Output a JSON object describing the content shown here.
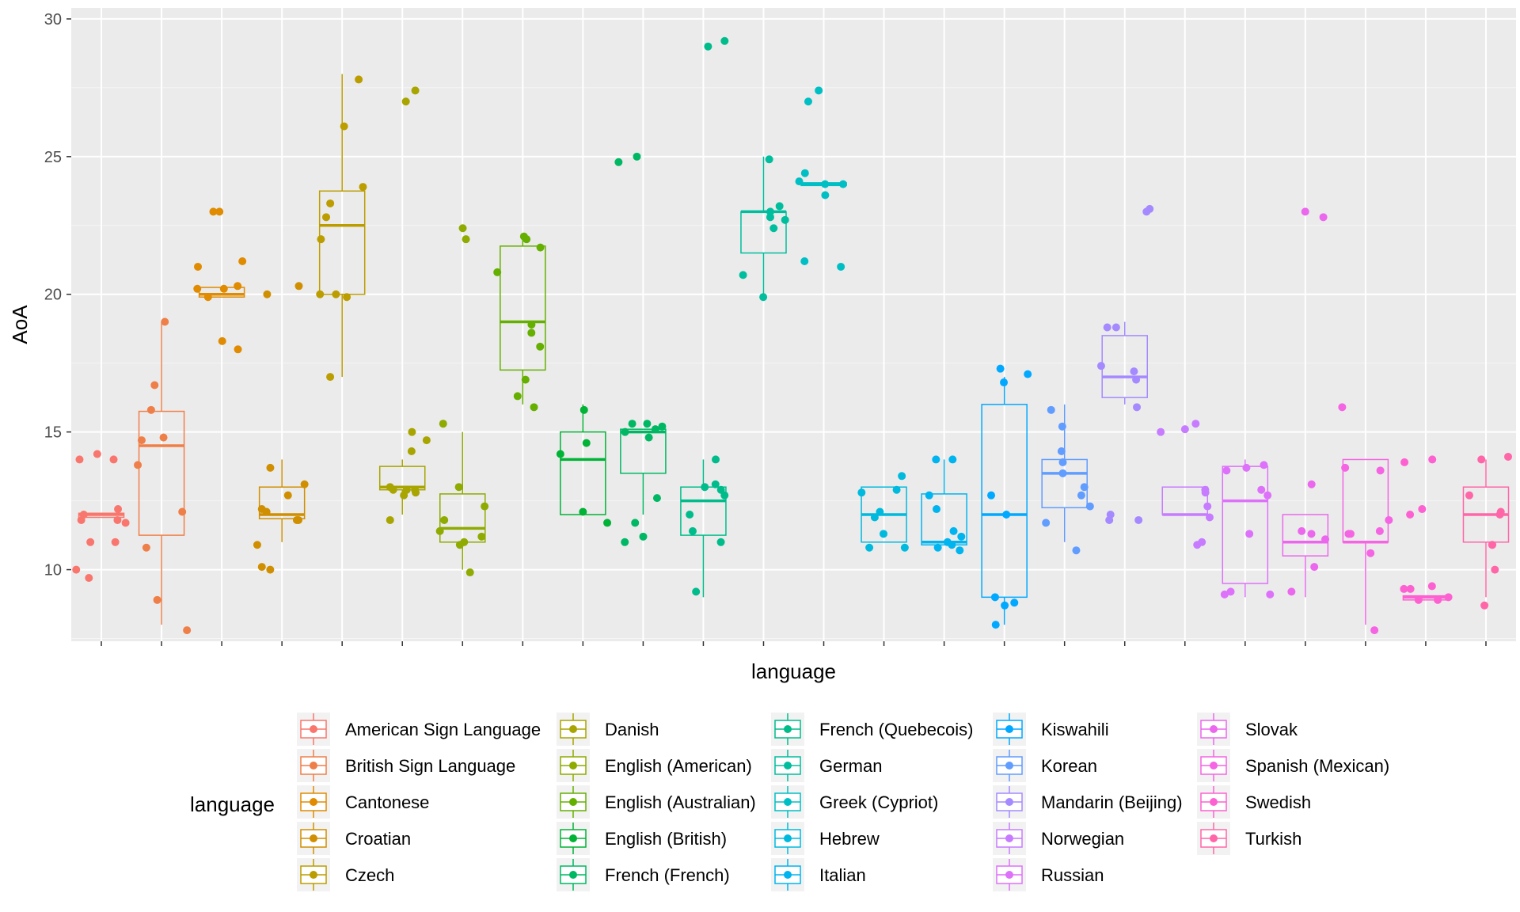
{
  "chart_data": {
    "type": "box",
    "xlabel": "language",
    "ylabel": "AoA",
    "ylim": [
      7.4,
      30.4
    ],
    "yticks": [
      10,
      15,
      20,
      25,
      30
    ],
    "grid": true,
    "legend": {
      "title": "language",
      "placement": "bottom",
      "columns": 5
    },
    "categories": [
      "American Sign Language",
      "British Sign Language",
      "Cantonese",
      "Croatian",
      "Czech",
      "Danish",
      "English (American)",
      "English (Australian)",
      "English (British)",
      "French (French)",
      "French (Quebecois)",
      "German",
      "Greek (Cypriot)",
      "Hebrew",
      "Italian",
      "Kiswahili",
      "Korean",
      "Mandarin (Beijing)",
      "Norwegian",
      "Russian",
      "Slovak",
      "Spanish (Mexican)",
      "Swedish",
      "Turkish"
    ],
    "series": [
      {
        "name": "American Sign Language",
        "color": "#F8766D",
        "box": {
          "q1": 11.9,
          "median": 12,
          "q3": 12.05,
          "whisker_low": 11.9,
          "whisker_high": 12.05
        },
        "points": [
          14,
          14,
          14.2,
          12.2,
          12,
          11.8,
          11.8,
          11.7,
          11,
          11,
          10,
          9.7
        ]
      },
      {
        "name": "British Sign Language",
        "color": "#EF7F48",
        "box": {
          "q1": 11.25,
          "median": 14.5,
          "q3": 15.75,
          "whisker_low": 8,
          "whisker_high": 19
        },
        "points": [
          19,
          16.7,
          15.8,
          14.8,
          14.7,
          13.8,
          12.1,
          10.8,
          8.9,
          7.8
        ]
      },
      {
        "name": "Cantonese",
        "color": "#E08B00",
        "box": {
          "q1": 19.9,
          "median": 20,
          "q3": 20.25,
          "whisker_low": 19.9,
          "whisker_high": 20.25
        },
        "points": [
          23,
          23,
          21.2,
          21,
          20.3,
          20.2,
          20.2,
          19.9,
          18.3,
          18
        ]
      },
      {
        "name": "Croatian",
        "color": "#D08F00",
        "box": {
          "q1": 11.85,
          "median": 12,
          "q3": 13,
          "whisker_low": 11,
          "whisker_high": 14
        },
        "points": [
          13.7,
          13.1,
          12.7,
          12.2,
          12.1,
          11.8,
          11.8,
          10.9,
          10.1,
          10,
          20.3,
          20
        ]
      },
      {
        "name": "Czech",
        "color": "#BC9D00",
        "box": {
          "q1": 20,
          "median": 22.5,
          "q3": 23.75,
          "whisker_low": 17,
          "whisker_high": 28
        },
        "points": [
          27.8,
          26.1,
          23.9,
          23.3,
          22.8,
          22,
          20,
          20,
          19.9,
          17
        ]
      },
      {
        "name": "Danish",
        "color": "#A8A400",
        "box": {
          "q1": 12.9,
          "median": 13,
          "q3": 13.75,
          "whisker_low": 12,
          "whisker_high": 14
        },
        "points": [
          27.4,
          27,
          15,
          14.7,
          14.3,
          13,
          12.9,
          12.9,
          12.9,
          12.8,
          12.7,
          11.8
        ]
      },
      {
        "name": "English (American)",
        "color": "#8FAA00",
        "box": {
          "q1": 11,
          "median": 11.5,
          "q3": 12.75,
          "whisker_low": 10,
          "whisker_high": 15
        },
        "points": [
          22.4,
          22,
          15.3,
          13,
          12.3,
          11.8,
          11.4,
          11.2,
          11,
          10.9,
          9.9
        ]
      },
      {
        "name": "English (Australian)",
        "color": "#65AF00",
        "box": {
          "q1": 17.25,
          "median": 19,
          "q3": 21.75,
          "whisker_low": 16,
          "whisker_high": 22
        },
        "points": [
          22.1,
          22,
          21.7,
          20.8,
          18.9,
          18.6,
          18.1,
          16.9,
          16.3,
          15.9
        ]
      },
      {
        "name": "English (British)",
        "color": "#00B336",
        "box": {
          "q1": 12,
          "median": 14,
          "q3": 15,
          "whisker_low": 12,
          "whisker_high": 16
        },
        "points": [
          15.8,
          14.6,
          14.2,
          12.1,
          11.7
        ]
      },
      {
        "name": "French (French)",
        "color": "#00B863",
        "box": {
          "q1": 13.5,
          "median": 15,
          "q3": 15.1,
          "whisker_low": 12,
          "whisker_high": 15.1
        },
        "points": [
          24.8,
          25,
          15.3,
          15.3,
          15.2,
          15.1,
          15,
          14.8,
          12.6,
          11.7,
          11.2,
          11
        ]
      },
      {
        "name": "French (Quebecois)",
        "color": "#00BC8B",
        "box": {
          "q1": 11.25,
          "median": 12.5,
          "q3": 13,
          "whisker_low": 9,
          "whisker_high": 14
        },
        "points": [
          29,
          29.2,
          14,
          13.1,
          13,
          12.9,
          12.7,
          12,
          11.4,
          11,
          9.2
        ]
      },
      {
        "name": "German",
        "color": "#00BE9D",
        "box": {
          "q1": 21.5,
          "median": 23,
          "q3": 23,
          "whisker_low": 20,
          "whisker_high": 25
        },
        "points": [
          24.9,
          23.2,
          23,
          22.8,
          22.7,
          22.4,
          20.7,
          19.9
        ]
      },
      {
        "name": "Greek (Cypriot)",
        "color": "#00BFC4",
        "box": {
          "q1": 23.95,
          "median": 24,
          "q3": 24.05,
          "whisker_low": 23.95,
          "whisker_high": 24.05
        },
        "points": [
          27.4,
          27,
          24.4,
          24.1,
          24,
          24,
          23.6,
          21.2,
          21
        ]
      },
      {
        "name": "Hebrew",
        "color": "#00BADE",
        "box": {
          "q1": 11,
          "median": 12,
          "q3": 13,
          "whisker_low": 11,
          "whisker_high": 13
        },
        "points": [
          13.4,
          12.9,
          12.8,
          12.1,
          11.9,
          11.3,
          10.8,
          10.8
        ]
      },
      {
        "name": "Italian",
        "color": "#00B4EF",
        "box": {
          "q1": 10.9,
          "median": 11,
          "q3": 12.75,
          "whisker_low": 10.9,
          "whisker_high": 14
        },
        "points": [
          14,
          14,
          12.7,
          12.2,
          11.4,
          11.2,
          11,
          10.9,
          10.8,
          10.7
        ]
      },
      {
        "name": "Kiswahili",
        "color": "#00A9FF",
        "box": {
          "q1": 9,
          "median": 12,
          "q3": 16,
          "whisker_low": 8,
          "whisker_high": 17
        },
        "points": [
          17.3,
          17.1,
          16.8,
          12.7,
          12,
          9,
          8.8,
          8.7,
          8
        ]
      },
      {
        "name": "Korean",
        "color": "#619CFF",
        "box": {
          "q1": 12.25,
          "median": 13.5,
          "q3": 14,
          "whisker_low": 11,
          "whisker_high": 16
        },
        "points": [
          15.8,
          15.2,
          14.3,
          13.9,
          13.5,
          13,
          12.7,
          12.3,
          11.7,
          10.7
        ]
      },
      {
        "name": "Mandarin (Beijing)",
        "color": "#A58AFF",
        "box": {
          "q1": 16.25,
          "median": 17,
          "q3": 18.5,
          "whisker_low": 16,
          "whisker_high": 19
        },
        "points": [
          23.1,
          23,
          18.8,
          18.8,
          17.4,
          17.2,
          16.9,
          15.9,
          12,
          11.8,
          11.8
        ]
      },
      {
        "name": "Norwegian",
        "color": "#C77CFF",
        "box": {
          "q1": 12,
          "median": 12,
          "q3": 13,
          "whisker_low": 12,
          "whisker_high": 13
        },
        "points": [
          15.3,
          15.1,
          15,
          12.9,
          12.8,
          12.3,
          11.9,
          11,
          10.9
        ]
      },
      {
        "name": "Russian",
        "color": "#DD71FA",
        "box": {
          "q1": 9.5,
          "median": 12.5,
          "q3": 13.75,
          "whisker_low": 9,
          "whisker_high": 14
        },
        "points": [
          13.8,
          13.7,
          13.6,
          12.9,
          12.7,
          11.3,
          9.2,
          9.1,
          9.1
        ]
      },
      {
        "name": "Slovak",
        "color": "#EB67ED",
        "box": {
          "q1": 10.5,
          "median": 11,
          "q3": 12,
          "whisker_low": 9,
          "whisker_high": 12
        },
        "points": [
          22.8,
          23,
          13.1,
          11.4,
          11.3,
          11.1,
          10.1,
          9.2
        ]
      },
      {
        "name": "Spanish (Mexican)",
        "color": "#F564E3",
        "box": {
          "q1": 11,
          "median": 11,
          "q3": 14,
          "whisker_low": 8,
          "whisker_high": 14
        },
        "points": [
          15.9,
          13.7,
          13.6,
          11.8,
          11.4,
          11.3,
          11.3,
          10.6,
          7.8
        ]
      },
      {
        "name": "Swedish",
        "color": "#FD61D1",
        "box": {
          "q1": 8.9,
          "median": 9,
          "q3": 9.05,
          "whisker_low": 8.9,
          "whisker_high": 9.05
        },
        "points": [
          14,
          13.9,
          12,
          12.2,
          9.4,
          9.3,
          9.3,
          9,
          8.9,
          8.9
        ]
      },
      {
        "name": "Turkish",
        "color": "#FF66A8",
        "box": {
          "q1": 11,
          "median": 12,
          "q3": 13,
          "whisker_low": 9,
          "whisker_high": 14
        },
        "points": [
          14.1,
          14,
          12.7,
          12.1,
          12,
          10.9,
          10.9,
          10,
          8.7
        ]
      }
    ]
  }
}
